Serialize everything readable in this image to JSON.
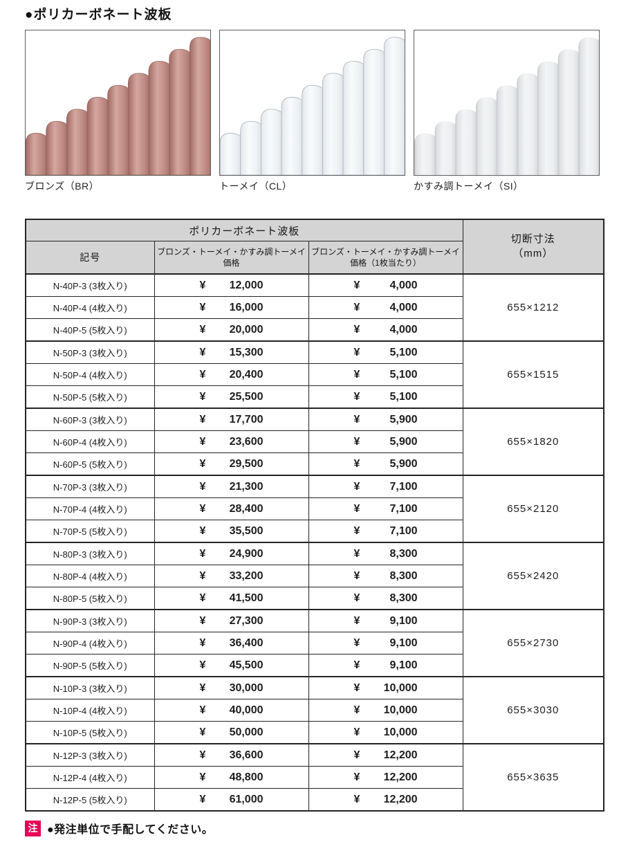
{
  "page": {
    "title": "●ポリカーボネート波板"
  },
  "images": [
    {
      "label": "ブロンズ（BR）",
      "style": "bronze",
      "palette": {
        "edge": "#9c6b64",
        "shadow": "#b07a73",
        "light": "#d3a7a0",
        "mid": "#c08b84",
        "edge2": "#a1716a"
      }
    },
    {
      "label": "トーメイ（CL）",
      "style": "clear",
      "palette": {
        "edge": "#dde2e8",
        "shadow": "#e9edf1",
        "light": "#f8fafb",
        "mid": "#eef1f4",
        "edge2": "#dbe0e5"
      }
    },
    {
      "label": "かすみ調トーメイ（SI）",
      "style": "frosted",
      "palette": {
        "edge": "#c6c9cd",
        "shadow": "#dfe1e4",
        "light": "#f3f4f5",
        "mid": "#eceeef",
        "edge2": "#d2d5d8"
      }
    }
  ],
  "table": {
    "title": "ポリカーボネート波板",
    "currency": "¥",
    "headers": {
      "code": "記号",
      "price_line1": "ブロンズ・トーメイ・かすみ調トーメイ",
      "price_line2": "価格",
      "unit_line1": "ブロンズ・トーメイ・かすみ調トーメイ",
      "unit_line2": "価格（1枚当たり）",
      "dim_line1": "切断寸法",
      "dim_line2": "（mm）"
    },
    "groups": [
      {
        "dimension": "655×1212",
        "rows": [
          {
            "code": "N-40P-3 (3枚入り)",
            "price": "12,000",
            "unit": "4,000"
          },
          {
            "code": "N-40P-4 (4枚入り)",
            "price": "16,000",
            "unit": "4,000"
          },
          {
            "code": "N-40P-5 (5枚入り)",
            "price": "20,000",
            "unit": "4,000"
          }
        ]
      },
      {
        "dimension": "655×1515",
        "rows": [
          {
            "code": "N-50P-3 (3枚入り)",
            "price": "15,300",
            "unit": "5,100"
          },
          {
            "code": "N-50P-4 (4枚入り)",
            "price": "20,400",
            "unit": "5,100"
          },
          {
            "code": "N-50P-5 (5枚入り)",
            "price": "25,500",
            "unit": "5,100"
          }
        ]
      },
      {
        "dimension": "655×1820",
        "rows": [
          {
            "code": "N-60P-3 (3枚入り)",
            "price": "17,700",
            "unit": "5,900"
          },
          {
            "code": "N-60P-4 (4枚入り)",
            "price": "23,600",
            "unit": "5,900"
          },
          {
            "code": "N-60P-5 (5枚入り)",
            "price": "29,500",
            "unit": "5,900"
          }
        ]
      },
      {
        "dimension": "655×2120",
        "rows": [
          {
            "code": "N-70P-3 (3枚入り)",
            "price": "21,300",
            "unit": "7,100"
          },
          {
            "code": "N-70P-4 (4枚入り)",
            "price": "28,400",
            "unit": "7,100"
          },
          {
            "code": "N-70P-5 (5枚入り)",
            "price": "35,500",
            "unit": "7,100"
          }
        ]
      },
      {
        "dimension": "655×2420",
        "rows": [
          {
            "code": "N-80P-3 (3枚入り)",
            "price": "24,900",
            "unit": "8,300"
          },
          {
            "code": "N-80P-4 (4枚入り)",
            "price": "33,200",
            "unit": "8,300"
          },
          {
            "code": "N-80P-5 (5枚入り)",
            "price": "41,500",
            "unit": "8,300"
          }
        ]
      },
      {
        "dimension": "655×2730",
        "rows": [
          {
            "code": "N-90P-3 (3枚入り)",
            "price": "27,300",
            "unit": "9,100"
          },
          {
            "code": "N-90P-4 (4枚入り)",
            "price": "36,400",
            "unit": "9,100"
          },
          {
            "code": "N-90P-5 (5枚入り)",
            "price": "45,500",
            "unit": "9,100"
          }
        ]
      },
      {
        "dimension": "655×3030",
        "rows": [
          {
            "code": "N-10P-3 (3枚入り)",
            "price": "30,000",
            "unit": "10,000"
          },
          {
            "code": "N-10P-4 (4枚入り)",
            "price": "40,000",
            "unit": "10,000"
          },
          {
            "code": "N-10P-5 (5枚入り)",
            "price": "50,000",
            "unit": "10,000"
          }
        ]
      },
      {
        "dimension": "655×3635",
        "rows": [
          {
            "code": "N-12P-3 (3枚入り)",
            "price": "36,600",
            "unit": "12,200"
          },
          {
            "code": "N-12P-4 (4枚入り)",
            "price": "48,800",
            "unit": "12,200"
          },
          {
            "code": "N-12P-5 (5枚入り)",
            "price": "61,000",
            "unit": "12,200"
          }
        ]
      }
    ]
  },
  "note": {
    "badge": "注",
    "text": "●発注単位で手配してください。"
  },
  "colors": {
    "header_bg": "#d4d4d4",
    "border": "#232323",
    "note_badge": "#e60057"
  }
}
